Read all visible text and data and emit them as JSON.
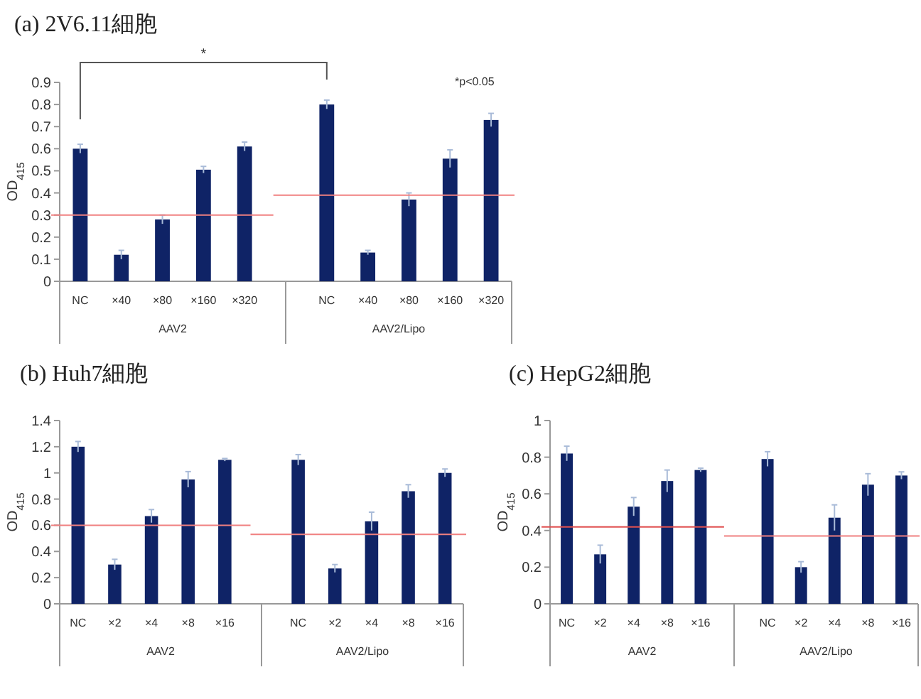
{
  "chart_data": [
    {
      "type": "bar",
      "title": "(a) 2V6.11細胞",
      "ylabel": "OD$_{415}$",
      "categories": [
        "NC",
        "×40",
        "×80",
        "×160",
        "×320",
        "NC",
        "×40",
        "×80",
        "×160",
        "×320"
      ],
      "series": [
        {
          "color": "#0f2366",
          "values": [
            0.6,
            0.12,
            0.28,
            0.505,
            0.61,
            0.8,
            0.13,
            0.37,
            0.555,
            0.73
          ],
          "errors": [
            0.02,
            0.02,
            0.02,
            0.015,
            0.02,
            0.02,
            0.01,
            0.03,
            0.04,
            0.03
          ]
        }
      ],
      "ylim": [
        0,
        0.9
      ],
      "yticks": [
        0,
        0.1,
        0.2,
        0.3,
        0.4,
        0.5,
        0.6,
        0.7,
        0.8,
        0.9
      ],
      "ref_lines": [
        {
          "axis": "y",
          "value": 0.3,
          "color": "#f08080"
        },
        {
          "axis": "y",
          "value": 0.39,
          "color": "#f08080"
        }
      ],
      "annotations": [
        "AAV2",
        "AAV2/Lipo",
        "*",
        "*p<0.05"
      ]
    },
    {
      "type": "bar",
      "title": "(b) Huh7細胞",
      "ylabel": "OD$_{415}$",
      "categories": [
        "NC",
        "×2",
        "×4",
        "×8",
        "×16",
        "NC",
        "×2",
        "×4",
        "×8",
        "×16"
      ],
      "series": [
        {
          "color": "#0f2366",
          "values": [
            1.2,
            0.3,
            0.67,
            0.95,
            1.1,
            1.1,
            0.27,
            0.63,
            0.86,
            1.0
          ],
          "errors": [
            0.04,
            0.04,
            0.05,
            0.06,
            0.01,
            0.04,
            0.03,
            0.07,
            0.05,
            0.03
          ]
        }
      ],
      "ylim": [
        0,
        1.4
      ],
      "yticks": [
        0,
        0.2,
        0.4,
        0.6,
        0.8,
        1,
        1.2,
        1.4
      ],
      "ref_lines": [
        {
          "axis": "y",
          "value": 0.6,
          "color": "#f08080"
        },
        {
          "axis": "y",
          "value": 0.53,
          "color": "#f08080"
        }
      ],
      "annotations": [
        "AAV2",
        "AAV2/Lipo"
      ]
    },
    {
      "type": "bar",
      "title": "(c) HepG2細胞",
      "ylabel": "OD$_{415}$",
      "categories": [
        "NC",
        "×2",
        "×4",
        "×8",
        "×16",
        "NC",
        "×2",
        "×4",
        "×8",
        "×16"
      ],
      "series": [
        {
          "color": "#0f2366",
          "values": [
            0.82,
            0.27,
            0.53,
            0.67,
            0.73,
            0.79,
            0.2,
            0.47,
            0.65,
            0.7
          ],
          "errors": [
            0.04,
            0.05,
            0.05,
            0.06,
            0.01,
            0.04,
            0.03,
            0.07,
            0.06,
            0.02
          ]
        }
      ],
      "ylim": [
        0,
        1
      ],
      "yticks": [
        0,
        0.2,
        0.4,
        0.6,
        0.8,
        1
      ],
      "ref_lines": [
        {
          "axis": "y",
          "value": 0.42,
          "color": "#e05050"
        },
        {
          "axis": "y",
          "value": 0.37,
          "color": "#f08080"
        }
      ],
      "annotations": [
        "AAV2",
        "AAV2/Lipo"
      ]
    }
  ]
}
